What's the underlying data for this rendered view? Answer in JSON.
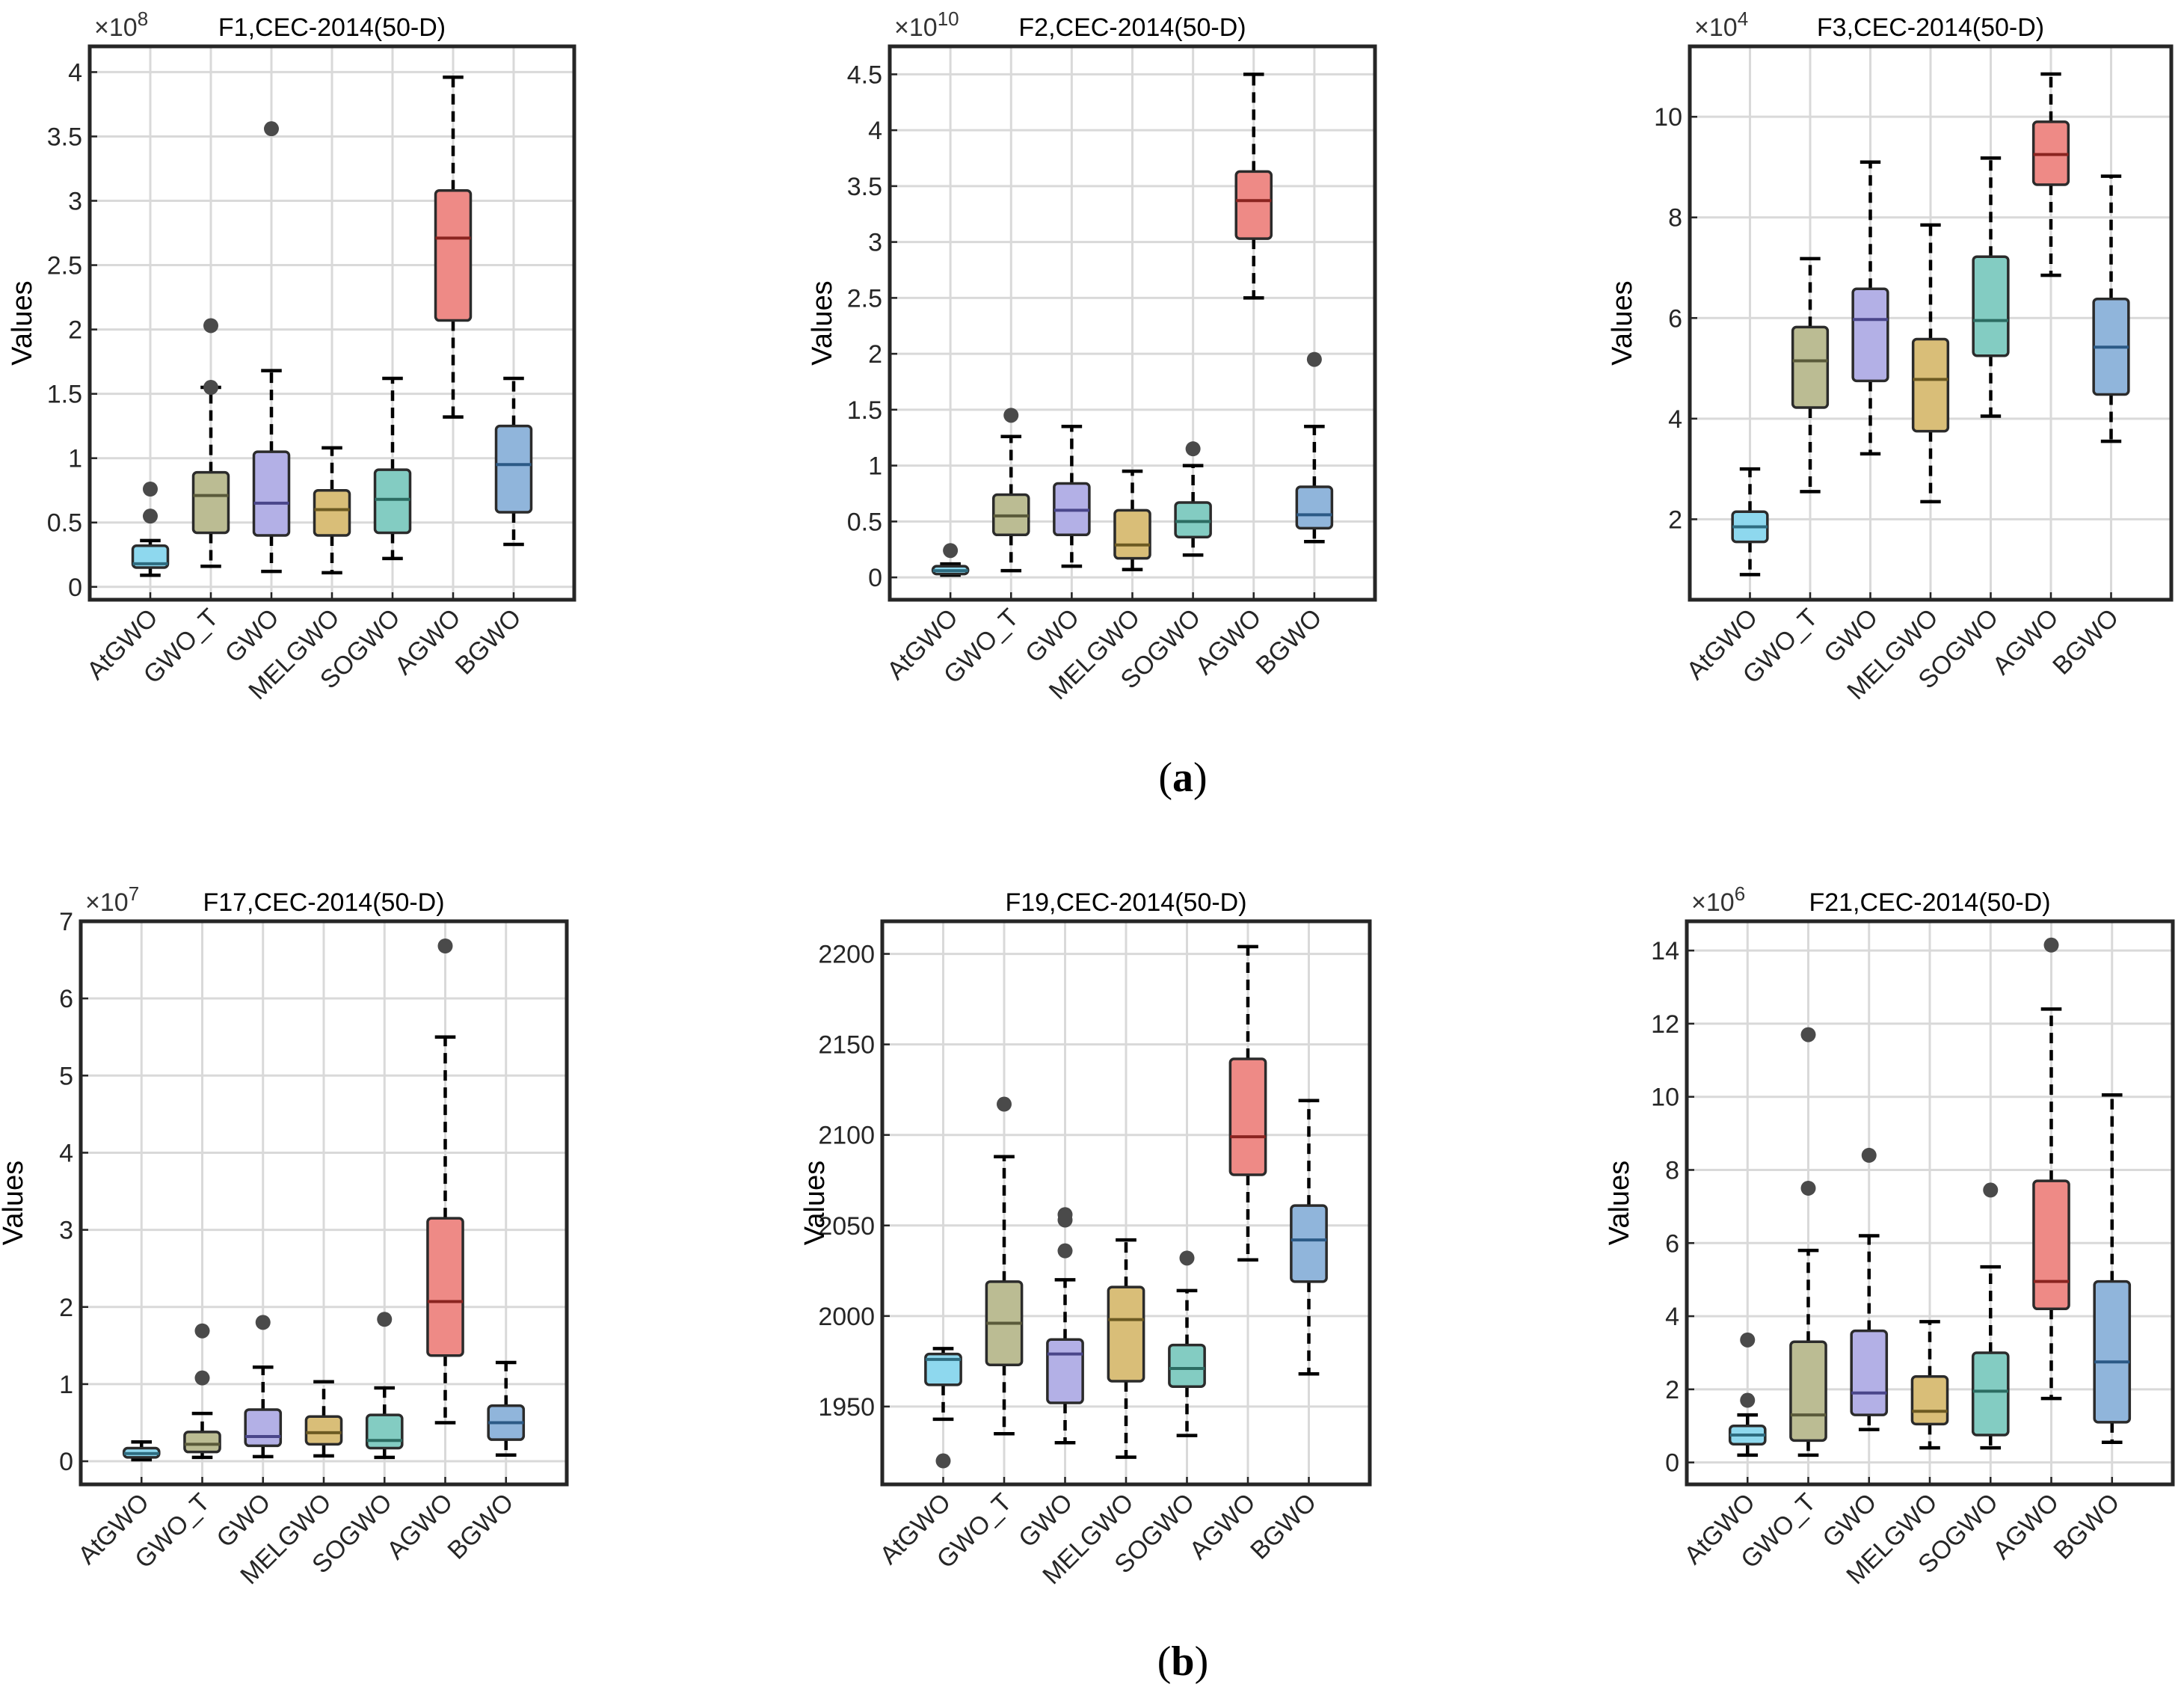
{
  "figure": {
    "caption_a": "a",
    "caption_b": "b"
  },
  "chart_data": [
    {
      "type": "boxplot",
      "title": "F1,CEC-2014(50-D)",
      "ylabel": "Values",
      "exponent_label": "×10",
      "exponent": "8",
      "scale": 100000000,
      "ylim": [
        -0.1,
        4.2
      ],
      "yticks": [
        0,
        0.5,
        1,
        1.5,
        2,
        2.5,
        3,
        3.5,
        4
      ],
      "ytick_labels": [
        "0",
        "0.5",
        "1",
        "1.5",
        "2",
        "2.5",
        "3",
        "3.5",
        "4"
      ],
      "categories": [
        "AtGWO",
        "GWO_T",
        "GWO",
        "MELGWO",
        "SOGWO",
        "AGWO",
        "BGWO"
      ],
      "boxes": [
        {
          "min": 0.09,
          "q1": 0.15,
          "median": 0.18,
          "q3": 0.32,
          "max": 0.36,
          "outliers": [
            0.55,
            0.76
          ]
        },
        {
          "min": 0.16,
          "q1": 0.42,
          "median": 0.71,
          "q3": 0.89,
          "max": 1.55,
          "outliers": [
            1.55,
            2.03
          ]
        },
        {
          "min": 0.12,
          "q1": 0.4,
          "median": 0.65,
          "q3": 1.05,
          "max": 1.68,
          "outliers": [
            3.56
          ]
        },
        {
          "min": 0.11,
          "q1": 0.4,
          "median": 0.6,
          "q3": 0.75,
          "max": 1.08,
          "outliers": []
        },
        {
          "min": 0.22,
          "q1": 0.42,
          "median": 0.68,
          "q3": 0.91,
          "max": 1.62,
          "outliers": []
        },
        {
          "min": 1.32,
          "q1": 2.07,
          "median": 2.71,
          "q3": 3.08,
          "max": 3.96,
          "outliers": []
        },
        {
          "min": 0.33,
          "q1": 0.58,
          "median": 0.95,
          "q3": 1.25,
          "max": 1.62,
          "outliers": []
        }
      ]
    },
    {
      "type": "boxplot",
      "title": "F2,CEC-2014(50-D)",
      "ylabel": "Values",
      "exponent_label": "×10",
      "exponent": "10",
      "scale": 10000000000,
      "ylim": [
        -0.2,
        4.75
      ],
      "yticks": [
        0,
        0.5,
        1,
        1.5,
        2,
        2.5,
        3,
        3.5,
        4,
        4.5
      ],
      "ytick_labels": [
        "0",
        "0.5",
        "1",
        "1.5",
        "2",
        "2.5",
        "3",
        "3.5",
        "4",
        "4.5"
      ],
      "categories": [
        "AtGWO",
        "GWO_T",
        "GWO",
        "MELGWO",
        "SOGWO",
        "AGWO",
        "BGWO"
      ],
      "boxes": [
        {
          "min": 0.02,
          "q1": 0.03,
          "median": 0.06,
          "q3": 0.1,
          "max": 0.12,
          "outliers": [
            0.24
          ]
        },
        {
          "min": 0.06,
          "q1": 0.38,
          "median": 0.55,
          "q3": 0.74,
          "max": 1.26,
          "outliers": [
            1.45
          ]
        },
        {
          "min": 0.1,
          "q1": 0.38,
          "median": 0.6,
          "q3": 0.84,
          "max": 1.35,
          "outliers": []
        },
        {
          "min": 0.07,
          "q1": 0.17,
          "median": 0.29,
          "q3": 0.6,
          "max": 0.95,
          "outliers": []
        },
        {
          "min": 0.2,
          "q1": 0.36,
          "median": 0.5,
          "q3": 0.67,
          "max": 1.0,
          "outliers": [
            1.15
          ]
        },
        {
          "min": 2.5,
          "q1": 3.03,
          "median": 3.37,
          "q3": 3.63,
          "max": 4.5,
          "outliers": []
        },
        {
          "min": 0.32,
          "q1": 0.44,
          "median": 0.56,
          "q3": 0.81,
          "max": 1.35,
          "outliers": [
            1.95
          ]
        }
      ]
    },
    {
      "type": "boxplot",
      "title": "F3,CEC-2014(50-D)",
      "ylabel": "Values",
      "exponent_label": "×10",
      "exponent": "4",
      "scale": 10000,
      "ylim": [
        0.4,
        11.4
      ],
      "yticks": [
        2,
        4,
        6,
        8,
        10
      ],
      "ytick_labels": [
        "2",
        "4",
        "6",
        "8",
        "10"
      ],
      "categories": [
        "AtGWO",
        "GWO_T",
        "GWO",
        "MELGWO",
        "SOGWO",
        "AGWO",
        "BGWO"
      ],
      "boxes": [
        {
          "min": 0.9,
          "q1": 1.55,
          "median": 1.85,
          "q3": 2.15,
          "max": 3.0,
          "outliers": []
        },
        {
          "min": 2.55,
          "q1": 4.22,
          "median": 5.15,
          "q3": 5.82,
          "max": 7.18,
          "outliers": []
        },
        {
          "min": 3.3,
          "q1": 4.75,
          "median": 5.97,
          "q3": 6.58,
          "max": 9.1,
          "outliers": []
        },
        {
          "min": 2.35,
          "q1": 3.75,
          "median": 4.78,
          "q3": 5.58,
          "max": 7.85,
          "outliers": []
        },
        {
          "min": 4.05,
          "q1": 5.25,
          "median": 5.95,
          "q3": 7.22,
          "max": 9.18,
          "outliers": []
        },
        {
          "min": 6.85,
          "q1": 8.65,
          "median": 9.25,
          "q3": 9.9,
          "max": 10.85,
          "outliers": []
        },
        {
          "min": 3.55,
          "q1": 4.48,
          "median": 5.42,
          "q3": 6.38,
          "max": 8.82,
          "outliers": []
        }
      ]
    },
    {
      "type": "boxplot",
      "title": "F17,CEC-2014(50-D)",
      "ylabel": "Values",
      "exponent_label": "×10",
      "exponent": "7",
      "scale": 10000000,
      "ylim": [
        -0.3,
        7.0
      ],
      "yticks": [
        0,
        1,
        2,
        3,
        4,
        5,
        6,
        7
      ],
      "ytick_labels": [
        "0",
        "1",
        "2",
        "3",
        "4",
        "5",
        "6",
        "7"
      ],
      "categories": [
        "AtGWO",
        "GWO_T",
        "GWO",
        "MELGWO",
        "SOGWO",
        "AGWO",
        "BGWO"
      ],
      "boxes": [
        {
          "min": 0.02,
          "q1": 0.05,
          "median": 0.1,
          "q3": 0.17,
          "max": 0.25,
          "outliers": []
        },
        {
          "min": 0.05,
          "q1": 0.12,
          "median": 0.22,
          "q3": 0.38,
          "max": 0.62,
          "outliers": [
            1.08,
            1.69
          ]
        },
        {
          "min": 0.06,
          "q1": 0.2,
          "median": 0.32,
          "q3": 0.67,
          "max": 1.22,
          "outliers": [
            1.8
          ]
        },
        {
          "min": 0.07,
          "q1": 0.22,
          "median": 0.37,
          "q3": 0.58,
          "max": 1.03,
          "outliers": []
        },
        {
          "min": 0.05,
          "q1": 0.17,
          "median": 0.27,
          "q3": 0.6,
          "max": 0.95,
          "outliers": [
            1.84
          ]
        },
        {
          "min": 0.5,
          "q1": 1.37,
          "median": 2.07,
          "q3": 3.15,
          "max": 5.5,
          "outliers": [
            6.68
          ]
        },
        {
          "min": 0.08,
          "q1": 0.28,
          "median": 0.5,
          "q3": 0.72,
          "max": 1.28,
          "outliers": []
        }
      ]
    },
    {
      "type": "boxplot",
      "title": "F19,CEC-2014(50-D)",
      "ylabel": "Values",
      "exponent_label": "",
      "exponent": "",
      "scale": 1,
      "ylim": [
        1907,
        2218
      ],
      "yticks": [
        1950,
        2000,
        2050,
        2100,
        2150,
        2200
      ],
      "ytick_labels": [
        "1950",
        "2000",
        "2050",
        "2100",
        "2150",
        "2200"
      ],
      "categories": [
        "AtGWO",
        "GWO_T",
        "GWO",
        "MELGWO",
        "SOGWO",
        "AGWO",
        "BGWO"
      ],
      "boxes": [
        {
          "min": 1943,
          "q1": 1962,
          "median": 1976,
          "q3": 1979,
          "max": 1982,
          "outliers": [
            1920
          ]
        },
        {
          "min": 1935,
          "q1": 1973,
          "median": 1996,
          "q3": 2019,
          "max": 2088,
          "outliers": [
            2117
          ]
        },
        {
          "min": 1930,
          "q1": 1952,
          "median": 1979,
          "q3": 1987,
          "max": 2020,
          "outliers": [
            2036,
            2053,
            2056
          ]
        },
        {
          "min": 1922,
          "q1": 1964,
          "median": 1998,
          "q3": 2016,
          "max": 2042,
          "outliers": []
        },
        {
          "min": 1934,
          "q1": 1961,
          "median": 1971,
          "q3": 1984,
          "max": 2014,
          "outliers": [
            2032
          ]
        },
        {
          "min": 2031,
          "q1": 2078,
          "median": 2099,
          "q3": 2142,
          "max": 2204,
          "outliers": []
        },
        {
          "min": 1968,
          "q1": 2019,
          "median": 2042,
          "q3": 2061,
          "max": 2119,
          "outliers": []
        }
      ]
    },
    {
      "type": "boxplot",
      "title": "F21,CEC-2014(50-D)",
      "ylabel": "Values",
      "exponent_label": "×10",
      "exponent": "6",
      "scale": 1000000,
      "ylim": [
        -0.6,
        14.8
      ],
      "yticks": [
        0,
        2,
        4,
        6,
        8,
        10,
        12,
        14
      ],
      "ytick_labels": [
        "0",
        "2",
        "4",
        "6",
        "8",
        "10",
        "12",
        "14"
      ],
      "categories": [
        "AtGWO",
        "GWO_T",
        "GWO",
        "MELGWO",
        "SOGWO",
        "AGWO",
        "BGWO"
      ],
      "boxes": [
        {
          "min": 0.2,
          "q1": 0.5,
          "median": 0.75,
          "q3": 1.0,
          "max": 1.3,
          "outliers": [
            1.7,
            3.35
          ]
        },
        {
          "min": 0.2,
          "q1": 0.6,
          "median": 1.3,
          "q3": 3.3,
          "max": 5.8,
          "outliers": [
            7.5,
            11.7
          ]
        },
        {
          "min": 0.9,
          "q1": 1.3,
          "median": 1.9,
          "q3": 3.6,
          "max": 6.2,
          "outliers": [
            8.4
          ]
        },
        {
          "min": 0.4,
          "q1": 1.05,
          "median": 1.4,
          "q3": 2.35,
          "max": 3.85,
          "outliers": []
        },
        {
          "min": 0.4,
          "q1": 0.75,
          "median": 1.95,
          "q3": 3.0,
          "max": 5.35,
          "outliers": [
            7.45
          ]
        },
        {
          "min": 1.75,
          "q1": 4.2,
          "median": 4.95,
          "q3": 7.7,
          "max": 12.4,
          "outliers": [
            14.15
          ]
        },
        {
          "min": 0.55,
          "q1": 1.1,
          "median": 2.75,
          "q3": 4.95,
          "max": 10.05,
          "outliers": []
        }
      ]
    }
  ],
  "colors": {
    "boxes": [
      "#8ED8EE",
      "#BBBC93",
      "#B3B0E6",
      "#D9BE78",
      "#83CCC2",
      "#EE8A86",
      "#90B5DB"
    ],
    "medians": [
      "#2E6C80",
      "#5A5A3A",
      "#4A468A",
      "#6C5A22",
      "#2C6C62",
      "#8A2420",
      "#2C5A86"
    ],
    "grid": "#D9D9D9",
    "frame": "#262626",
    "whisker": "#000000",
    "outlier": "#4A4A4A"
  }
}
